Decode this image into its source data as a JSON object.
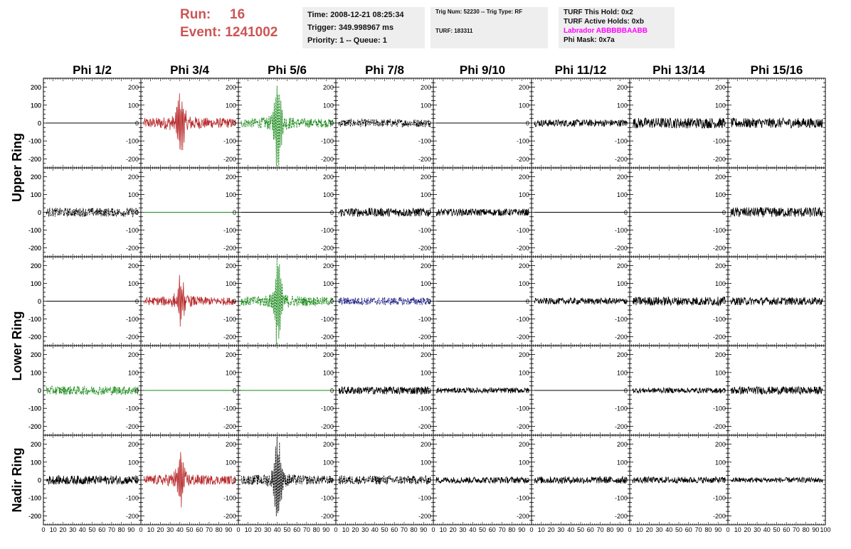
{
  "header": {
    "run_label": "Run:",
    "run_value": "16",
    "event_label": "Event:",
    "event_value": "1241002",
    "time_line": "Time: 2008-12-21 08:25:34",
    "trigger_line": "Trigger: 349.998967 ms",
    "priority_line": "Priority: 1 -- Queue: 1",
    "trig_line": "Trig Num: 52230 -- Trig Type: RF",
    "turf_line": "TURF: 183311",
    "hold_line": "TURF This Hold: 0x2",
    "active_holds_line": "TURF Active Holds: 0xb",
    "labrador_line": "Labrador ABBBBBAABB",
    "phimask_line": "Phi Mask: 0x7a"
  },
  "colors": {
    "header_red": "#cc5555",
    "labrador_magenta": "#ff00ff",
    "trace_black": "#000000",
    "trace_red": "#b8292b",
    "trace_green": "#1a8a1a",
    "trace_blue": "#1a1a80",
    "box_background": "#eeeeee"
  },
  "chart_data": {
    "type": "line",
    "title": "",
    "columns": [
      "Phi 1/2",
      "Phi 3/4",
      "Phi 5/6",
      "Phi 7/8",
      "Phi 9/10",
      "Phi 11/12",
      "Phi 13/14",
      "Phi 15/16"
    ],
    "ring_labels": [
      {
        "label": "Upper Ring",
        "rows": [
          0,
          1
        ]
      },
      {
        "label": "Lower Ring",
        "rows": [
          2,
          3
        ]
      },
      {
        "label": "Nadir Ring",
        "rows": [
          4
        ]
      }
    ],
    "ylim": [
      -250,
      250
    ],
    "yticks": [
      -200,
      -100,
      0,
      100,
      200
    ],
    "xlim": [
      0,
      100
    ],
    "xtick_labels": [
      "0",
      "10",
      "20",
      "30",
      "40",
      "50",
      "60",
      "70",
      "80",
      "90",
      "100"
    ],
    "x_unit_note": "",
    "panels": [
      [
        {
          "color": "black",
          "style": "flat"
        },
        {
          "color": "red",
          "style": "pulse",
          "amp": 170,
          "noise": 45,
          "center": 40
        },
        {
          "color": "green",
          "style": "pulse",
          "amp": 240,
          "noise": 40,
          "center": 40,
          "dashed": true
        },
        {
          "color": "black",
          "style": "noise",
          "noise": 22,
          "dashed": true
        },
        {
          "color": "black",
          "style": "flat"
        },
        {
          "color": "black",
          "style": "noise",
          "noise": 20
        },
        {
          "color": "black",
          "style": "noise",
          "noise": 30
        },
        {
          "color": "black",
          "style": "noise",
          "noise": 28
        }
      ],
      [
        {
          "color": "black",
          "style": "noise",
          "noise": 25,
          "dashed": true
        },
        {
          "color": "green",
          "style": "flat"
        },
        {
          "color": "black",
          "style": "flat"
        },
        {
          "color": "black",
          "style": "noise",
          "noise": 25
        },
        {
          "color": "black",
          "style": "noise",
          "noise": 20
        },
        {
          "color": "black",
          "style": "flat"
        },
        {
          "color": "black",
          "style": "flat"
        },
        {
          "color": "black",
          "style": "noise",
          "noise": 28
        }
      ],
      [
        {
          "color": "black",
          "style": "flat"
        },
        {
          "color": "red",
          "style": "pulse",
          "amp": 130,
          "noise": 35,
          "center": 40
        },
        {
          "color": "green",
          "style": "pulse",
          "amp": 250,
          "noise": 40,
          "center": 40,
          "dashed": true
        },
        {
          "color": "blue",
          "style": "noise",
          "noise": 22,
          "dashed": true
        },
        {
          "color": "black",
          "style": "flat"
        },
        {
          "color": "black",
          "style": "noise",
          "noise": 18
        },
        {
          "color": "black",
          "style": "noise",
          "noise": 25
        },
        {
          "color": "black",
          "style": "noise",
          "noise": 22
        }
      ],
      [
        {
          "color": "green",
          "style": "noise",
          "noise": 25,
          "dashed": true
        },
        {
          "color": "green",
          "style": "flat"
        },
        {
          "color": "green",
          "style": "flat"
        },
        {
          "color": "black",
          "style": "noise",
          "noise": 22
        },
        {
          "color": "black",
          "style": "noise",
          "noise": 15
        },
        {
          "color": "black",
          "style": "flat"
        },
        {
          "color": "black",
          "style": "noise",
          "noise": 15
        },
        {
          "color": "black",
          "style": "noise",
          "noise": 22
        }
      ],
      [
        {
          "color": "black",
          "style": "noise",
          "noise": 25
        },
        {
          "color": "red",
          "style": "pulse",
          "amp": 140,
          "noise": 40,
          "center": 40
        },
        {
          "color": "black",
          "style": "pulse",
          "amp": 230,
          "noise": 40,
          "center": 40,
          "dashed": true
        },
        {
          "color": "black",
          "style": "noise",
          "noise": 25,
          "dashed": true
        },
        {
          "color": "black",
          "style": "noise",
          "noise": 18
        },
        {
          "color": "black",
          "style": "noise",
          "noise": 20
        },
        {
          "color": "black",
          "style": "noise",
          "noise": 18
        },
        {
          "color": "black",
          "style": "noise",
          "noise": 15
        }
      ]
    ]
  }
}
